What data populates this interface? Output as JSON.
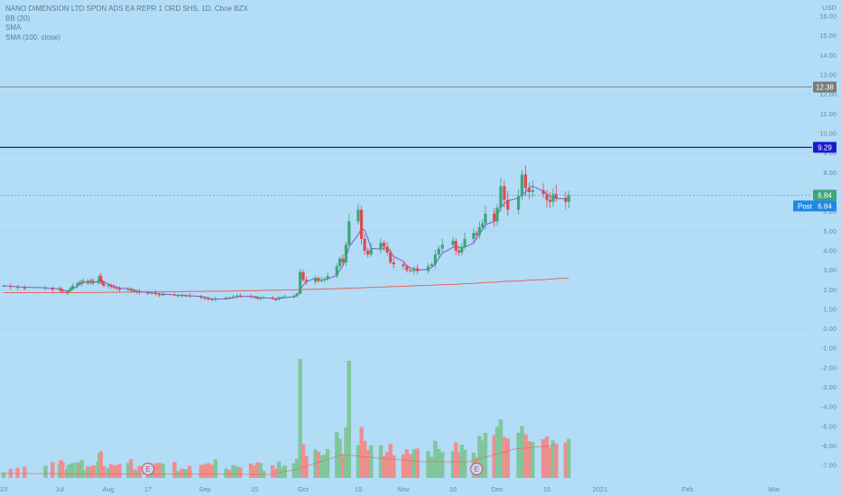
{
  "legend": {
    "title": "NANO DIMENSION LTD SPON ADS EA REPR 1 ORD SHS, 1D, Cboe BZX",
    "line2": "BB (20)",
    "line3": "SMA",
    "line4": "SMA (100, close)"
  },
  "colors": {
    "background": "#b3dcf7",
    "up": "#3aa776",
    "down": "#e2484e",
    "volume_up": "#7fc79a",
    "volume_down": "#ef8e8e",
    "sma_short": "#7b5ad6",
    "sma_long": "#e3675c",
    "line_dark": "#1f2a78",
    "line_grey": "#8a8f8f",
    "tag_blue": "#1e88e5",
    "tag_darkblue": "#1a1acb",
    "tag_grey": "#797a7a"
  },
  "chart_data": {
    "type": "candlestick",
    "y_axis": {
      "unit": "USD",
      "ticks": [
        "USD",
        "16.00",
        "15.00",
        "14.00",
        "13.00",
        "12.00",
        "11.00",
        "10.00",
        "9.00",
        "8.00",
        "7.00",
        "6.00",
        "5.00",
        "4.00",
        "3.00",
        "2.00",
        "1.00",
        "0.00",
        "-1.00",
        "-2.00",
        "-3.00",
        "-4.00",
        "-5.00",
        "-6.00",
        "-7.00"
      ],
      "range": [
        -7.6,
        16.5
      ]
    },
    "x_axis": {
      "ticks": [
        {
          "label": "23",
          "date": "2020-06-23"
        },
        {
          "label": "Jul",
          "date": "2020-07-01"
        },
        {
          "label": "Aug",
          "date": "2020-08-03"
        },
        {
          "label": "17",
          "date": "2020-08-17"
        },
        {
          "label": "Sep",
          "date": "2020-09-01"
        },
        {
          "label": "15",
          "date": "2020-09-15"
        },
        {
          "label": "Oct",
          "date": "2020-10-01"
        },
        {
          "label": "19",
          "date": "2020-10-19"
        },
        {
          "label": "Nov",
          "date": "2020-11-02"
        },
        {
          "label": "16",
          "date": "2020-11-16"
        },
        {
          "label": "Dec",
          "date": "2020-12-01"
        },
        {
          "label": "15",
          "date": "2020-12-15"
        },
        {
          "label": "2021",
          "date": "2021-01-01"
        },
        {
          "label": "Feb",
          "date": "2021-02-01"
        },
        {
          "label": "Mar",
          "date": "2021-03-01"
        }
      ]
    },
    "series": [
      {
        "name": "Price",
        "type": "candlestick",
        "closes": [
          2.2,
          2.15,
          2.1,
          2.05,
          2.1,
          2.0,
          2.05,
          1.95,
          1.9,
          1.85,
          1.95,
          2.0,
          2.1,
          2.2,
          2.3,
          2.35,
          2.3,
          2.4,
          2.45,
          2.35,
          2.4,
          2.45,
          2.4,
          2.35,
          2.45,
          2.7,
          2.4,
          2.3,
          2.2,
          2.25,
          2.15,
          2.1,
          2.05,
          2.0,
          2.05,
          1.95,
          1.9,
          1.92,
          1.85,
          1.8,
          1.85,
          1.78,
          1.72,
          1.75,
          1.7,
          1.72,
          1.68,
          1.7,
          1.65,
          1.6,
          1.55,
          1.5,
          1.48,
          1.55,
          1.6,
          1.58,
          1.65,
          1.7,
          1.68,
          1.62,
          1.6,
          1.55,
          1.58,
          1.6,
          1.52,
          1.5,
          1.6,
          1.62,
          1.65,
          1.7,
          1.8,
          2.9,
          2.5,
          2.4,
          2.6,
          2.45,
          2.5,
          2.55,
          2.7,
          3.2,
          3.6,
          3.4,
          4.3,
          5.5,
          6.1,
          4.6,
          4.0,
          3.8,
          4.1,
          4.4,
          4.2,
          3.9,
          3.4,
          3.3,
          3.2,
          3.0,
          2.95,
          3.1,
          2.95,
          3.2,
          3.3,
          3.8,
          4.1,
          4.3,
          4.5,
          4.0,
          3.9,
          4.2,
          4.6,
          4.9,
          4.8,
          5.2,
          5.4,
          5.9,
          5.5,
          6.2,
          7.3,
          6.6,
          6.1,
          6.8,
          7.9,
          7.2,
          7.0,
          7.1,
          6.9,
          6.6,
          6.5,
          6.9,
          6.7,
          6.5,
          6.84
        ]
      },
      {
        "name": "SMA (100, close)",
        "type": "line",
        "values": [
          1.85,
          2.6
        ]
      },
      {
        "name": "Volume",
        "type": "bar"
      }
    ],
    "price_tags": [
      {
        "value": "12.38"
      },
      {
        "value": "9.29"
      },
      {
        "value": "6.84"
      },
      {
        "value": "6.84",
        "label": "Post"
      }
    ],
    "event_markers": [
      {
        "label": "E",
        "date": "2020-08-17"
      },
      {
        "label": "E",
        "date": "2020-11-24"
      }
    ]
  }
}
